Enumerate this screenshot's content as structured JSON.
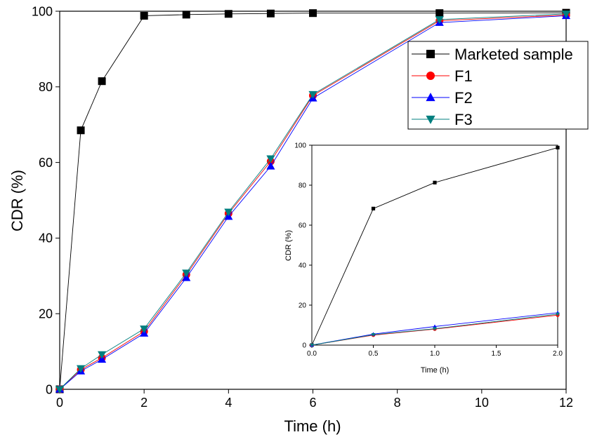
{
  "chart_data": [
    {
      "type": "line",
      "role": "main",
      "xlabel": "Time (h)",
      "ylabel": "CDR (%)",
      "xlim": [
        0,
        12
      ],
      "ylim": [
        0,
        100
      ],
      "xticks": [
        0,
        2,
        4,
        6,
        8,
        10,
        12
      ],
      "yticks": [
        0,
        20,
        40,
        60,
        80,
        100
      ],
      "grid": false,
      "legend": "top-right",
      "x": [
        0,
        0.5,
        1,
        2,
        3,
        4,
        5,
        6,
        9,
        12
      ],
      "series": [
        {
          "name": "Marketed sample",
          "color": "#000000",
          "marker": "square",
          "values": [
            0,
            68.5,
            81.5,
            98.8,
            99.1,
            99.3,
            99.4,
            99.5,
            99.5,
            99.6
          ]
        },
        {
          "name": "F1",
          "color": "#ff0000",
          "marker": "circle",
          "values": [
            0,
            5.2,
            8.3,
            15.3,
            30.3,
            46.5,
            60.3,
            77.7,
            97.5,
            99.0
          ]
        },
        {
          "name": "F2",
          "color": "#0000ff",
          "marker": "triangle-up",
          "values": [
            0,
            4.8,
            7.9,
            14.8,
            29.5,
            45.7,
            59.0,
            77.0,
            97.0,
            98.8
          ]
        },
        {
          "name": "F3",
          "color": "#007f7f",
          "marker": "triangle-down",
          "values": [
            0,
            5.5,
            9.2,
            16.0,
            30.8,
            46.9,
            61.0,
            78.0,
            97.8,
            99.3
          ]
        }
      ]
    },
    {
      "type": "line",
      "role": "inset",
      "xlabel": "Time (h)",
      "ylabel": "CDR (%)",
      "xlim": [
        0,
        2
      ],
      "ylim": [
        0,
        100
      ],
      "xticks": [
        "0.0",
        "0.5",
        "1.0",
        "1.5",
        "2.0"
      ],
      "yticks": [
        0,
        20,
        40,
        60,
        80,
        100
      ],
      "grid": false,
      "x": [
        0,
        0.5,
        1,
        2
      ],
      "series": [
        {
          "name": "Marketed sample",
          "color": "#000000",
          "marker": "square",
          "values": [
            0,
            68.3,
            81.3,
            98.8
          ]
        },
        {
          "name": "F1",
          "color": "#ff0000",
          "marker": "circle",
          "values": [
            0,
            5.0,
            8.0,
            15.0
          ]
        },
        {
          "name": "F2",
          "color": "#0000ff",
          "marker": "triangle-up",
          "values": [
            0,
            5.5,
            9.3,
            16.2
          ]
        },
        {
          "name": "F3",
          "color": "#007f7f",
          "marker": "triangle-down",
          "values": [
            0,
            5.2,
            8.2,
            15.5
          ]
        }
      ]
    }
  ]
}
